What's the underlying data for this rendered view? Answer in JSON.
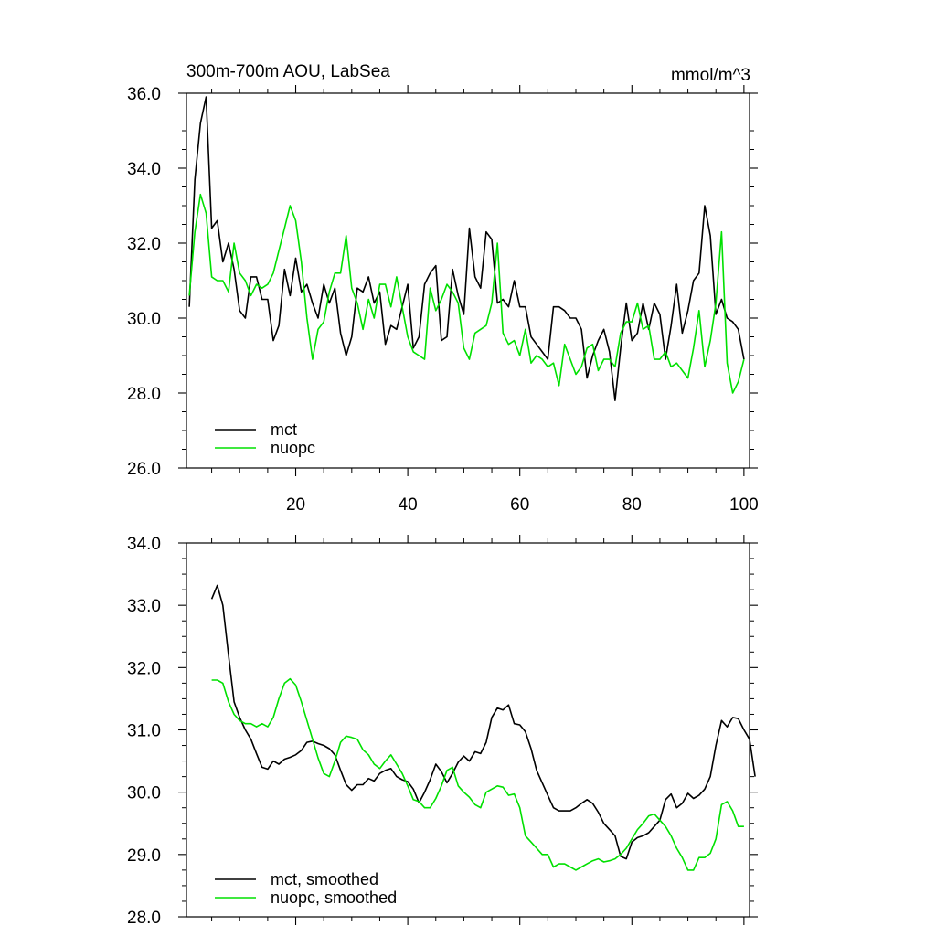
{
  "colors": {
    "mct": "#000000",
    "nuopc": "#00e000",
    "axis": "#000000"
  },
  "chart_data": [
    {
      "type": "line",
      "title": "300m-700m AOU, LabSea",
      "units": "mmol/m^3",
      "xlim": [
        0.5,
        101
      ],
      "ylim": [
        26.0,
        36.0
      ],
      "xticks": [
        20,
        40,
        60,
        80,
        100
      ],
      "xtick_labels": [
        "20",
        "40",
        "60",
        "80",
        "100"
      ],
      "yticks": [
        26.0,
        28.0,
        30.0,
        32.0,
        34.0,
        36.0
      ],
      "ytick_labels": [
        "26.0",
        "28.0",
        "30.0",
        "32.0",
        "34.0",
        "36.0"
      ],
      "legend_placement": "bottom-left",
      "x_start": 1,
      "series": [
        {
          "name": "mct",
          "color": "#000000",
          "values": [
            30.3,
            33.7,
            35.2,
            35.9,
            32.4,
            32.6,
            31.5,
            32.0,
            31.3,
            30.2,
            30.0,
            31.1,
            31.1,
            30.5,
            30.5,
            29.4,
            29.8,
            31.3,
            30.6,
            31.6,
            30.7,
            30.9,
            30.4,
            30.0,
            30.9,
            30.4,
            30.8,
            29.6,
            29.0,
            29.5,
            30.8,
            30.7,
            31.1,
            30.4,
            30.7,
            29.3,
            29.8,
            29.7,
            30.3,
            30.9,
            29.2,
            29.5,
            30.9,
            31.2,
            31.4,
            29.4,
            29.5,
            31.3,
            30.6,
            30.1,
            32.4,
            31.1,
            30.8,
            32.3,
            32.1,
            30.4,
            30.5,
            30.3,
            31.0,
            30.3,
            30.3,
            29.5,
            29.3,
            29.1,
            28.9,
            30.3,
            30.3,
            30.2,
            30.0,
            30.0,
            29.7,
            28.4,
            29.0,
            29.4,
            29.7,
            29.1,
            27.8,
            29.2,
            30.4,
            29.4,
            29.6,
            30.4,
            29.7,
            30.4,
            30.1,
            28.9,
            29.8,
            30.9,
            29.6,
            30.2,
            31.0,
            31.2,
            33.0,
            32.2,
            30.1,
            30.5,
            30.0,
            29.9,
            29.7,
            28.9
          ]
        },
        {
          "name": "nuopc",
          "color": "#00e000",
          "values": [
            30.6,
            32.3,
            33.3,
            32.8,
            31.1,
            31.0,
            31.0,
            30.7,
            32.0,
            31.2,
            31.0,
            30.6,
            30.9,
            30.8,
            30.9,
            31.2,
            31.8,
            32.4,
            33.0,
            32.6,
            31.5,
            30.0,
            28.9,
            29.7,
            29.9,
            30.7,
            31.2,
            31.2,
            32.2,
            30.8,
            30.4,
            29.7,
            30.5,
            30.0,
            30.9,
            30.9,
            30.3,
            31.1,
            30.3,
            29.5,
            29.1,
            29.0,
            28.9,
            30.8,
            30.2,
            30.5,
            30.9,
            30.7,
            30.4,
            29.2,
            28.9,
            29.6,
            29.7,
            29.8,
            30.4,
            32.0,
            29.6,
            29.3,
            29.4,
            29.0,
            29.7,
            28.8,
            29.0,
            28.9,
            28.7,
            28.8,
            28.2,
            29.3,
            28.9,
            28.5,
            28.7,
            29.2,
            29.3,
            28.6,
            28.9,
            28.9,
            28.7,
            29.6,
            29.9,
            29.9,
            30.4,
            29.7,
            29.8,
            28.9,
            28.9,
            29.1,
            28.7,
            28.8,
            28.6,
            28.4,
            29.2,
            30.2,
            28.7,
            29.4,
            30.4,
            32.3,
            28.8,
            28.0,
            28.3,
            28.9
          ]
        }
      ]
    },
    {
      "type": "line",
      "xlim": [
        0.5,
        101
      ],
      "ylim": [
        28.0,
        34.0
      ],
      "xticks": [
        20,
        40,
        60,
        80,
        100
      ],
      "yticks": [
        28.0,
        29.0,
        30.0,
        31.0,
        32.0,
        33.0,
        34.0
      ],
      "ytick_labels": [
        "28.0",
        "29.0",
        "30.0",
        "31.0",
        "32.0",
        "33.0",
        "34.0"
      ],
      "legend_placement": "bottom-left",
      "x_start": 5,
      "series": [
        {
          "name": "mct, smoothed",
          "color": "#000000",
          "values": [
            33.1,
            33.32,
            33.0,
            32.2,
            31.45,
            31.2,
            31.0,
            30.85,
            30.62,
            30.4,
            30.37,
            30.5,
            30.45,
            30.53,
            30.56,
            30.6,
            30.67,
            30.8,
            30.82,
            30.78,
            30.75,
            30.7,
            30.6,
            30.35,
            30.12,
            30.03,
            30.12,
            30.12,
            30.22,
            30.18,
            30.3,
            30.35,
            30.38,
            30.25,
            30.2,
            30.17,
            30.05,
            29.83,
            30.0,
            30.2,
            30.45,
            30.33,
            30.15,
            30.3,
            30.48,
            30.58,
            30.5,
            30.65,
            30.62,
            30.8,
            31.2,
            31.35,
            31.32,
            31.4,
            31.1,
            31.08,
            30.97,
            30.7,
            30.35,
            30.15,
            29.95,
            29.75,
            29.7,
            29.7,
            29.7,
            29.75,
            29.82,
            29.88,
            29.82,
            29.68,
            29.5,
            29.4,
            29.3,
            28.97,
            28.93,
            29.2,
            29.27,
            29.3,
            29.35,
            29.45,
            29.55,
            29.88,
            29.97,
            29.75,
            29.82,
            29.98,
            29.9,
            29.95,
            30.05,
            30.25,
            30.75,
            31.15,
            31.05,
            31.2,
            31.18,
            31.0,
            30.85,
            30.25
          ]
        },
        {
          "name": "nuopc, smoothed",
          "color": "#00e000",
          "values": [
            31.8,
            31.8,
            31.75,
            31.45,
            31.25,
            31.15,
            31.1,
            31.1,
            31.05,
            31.1,
            31.05,
            31.2,
            31.5,
            31.75,
            31.82,
            31.72,
            31.45,
            31.15,
            30.85,
            30.55,
            30.3,
            30.25,
            30.5,
            30.8,
            30.9,
            30.88,
            30.85,
            30.68,
            30.6,
            30.45,
            30.38,
            30.5,
            30.6,
            30.45,
            30.3,
            30.1,
            29.88,
            29.85,
            29.75,
            29.75,
            29.9,
            30.1,
            30.35,
            30.4,
            30.1,
            30.0,
            29.92,
            29.8,
            29.75,
            30.0,
            30.05,
            30.1,
            30.08,
            29.95,
            29.97,
            29.75,
            29.3,
            29.2,
            29.1,
            29.0,
            29.0,
            28.8,
            28.85,
            28.85,
            28.8,
            28.75,
            28.8,
            28.85,
            28.9,
            28.93,
            28.88,
            28.9,
            28.93,
            29.0,
            29.1,
            29.25,
            29.4,
            29.5,
            29.62,
            29.65,
            29.55,
            29.45,
            29.3,
            29.1,
            28.95,
            28.75,
            28.75,
            28.95,
            28.95,
            29.02,
            29.25,
            29.8,
            29.85,
            29.7,
            29.45,
            29.45
          ]
        }
      ]
    }
  ]
}
